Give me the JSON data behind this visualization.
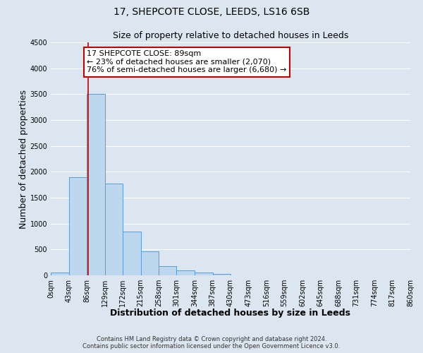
{
  "title": "17, SHEPCOTE CLOSE, LEEDS, LS16 6SB",
  "subtitle": "Size of property relative to detached houses in Leeds",
  "xlabel": "Distribution of detached houses by size in Leeds",
  "ylabel": "Number of detached properties",
  "bin_edges": [
    0,
    43,
    86,
    129,
    172,
    215,
    258,
    301,
    344,
    387,
    430,
    473,
    516,
    559,
    602,
    645,
    688,
    731,
    774,
    817,
    860
  ],
  "bin_labels": [
    "0sqm",
    "43sqm",
    "86sqm",
    "129sqm",
    "172sqm",
    "215sqm",
    "258sqm",
    "301sqm",
    "344sqm",
    "387sqm",
    "430sqm",
    "473sqm",
    "516sqm",
    "559sqm",
    "602sqm",
    "645sqm",
    "688sqm",
    "731sqm",
    "774sqm",
    "817sqm",
    "860sqm"
  ],
  "bar_heights": [
    50,
    1900,
    3500,
    1775,
    850,
    460,
    175,
    95,
    50,
    30,
    0,
    0,
    0,
    0,
    0,
    0,
    0,
    0,
    0,
    0
  ],
  "bar_color": "#bdd7ee",
  "bar_edge_color": "#5b9bd5",
  "vline_x": 89,
  "vline_color": "#c00000",
  "annotation_line1": "17 SHEPCOTE CLOSE: 89sqm",
  "annotation_line2": "← 23% of detached houses are smaller (2,070)",
  "annotation_line3": "76% of semi-detached houses are larger (6,680) →",
  "annotation_box_color": "#ffffff",
  "annotation_box_edge_color": "#c00000",
  "ylim": [
    0,
    4500
  ],
  "yticks": [
    0,
    500,
    1000,
    1500,
    2000,
    2500,
    3000,
    3500,
    4000,
    4500
  ],
  "footer_line1": "Contains HM Land Registry data © Crown copyright and database right 2024.",
  "footer_line2": "Contains public sector information licensed under the Open Government Licence v3.0.",
  "bg_color": "#dce6f1",
  "plot_bg_color": "#dce6f1",
  "grid_color": "#ffffff",
  "title_fontsize": 10,
  "subtitle_fontsize": 9,
  "axis_label_fontsize": 9,
  "tick_fontsize": 7,
  "footer_fontsize": 6,
  "annotation_fontsize": 8
}
